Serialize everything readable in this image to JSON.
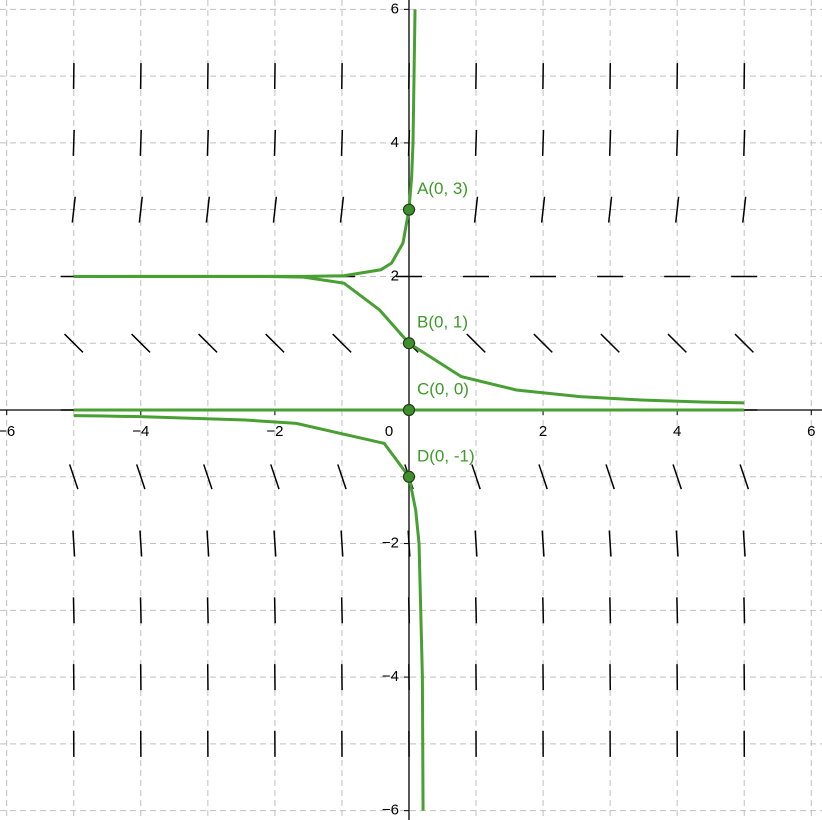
{
  "chart_data": {
    "type": "slope_field",
    "xlim": [
      -6.1,
      6.16
    ],
    "ylim": [
      -6.14,
      6.14
    ],
    "xticks": [
      {
        "value": -6,
        "label": "−6"
      },
      {
        "value": -4,
        "label": "−4"
      },
      {
        "value": -2,
        "label": "−2"
      },
      0,
      2,
      4,
      6
    ],
    "yticks": [
      {
        "value": -6,
        "label": "−6"
      },
      {
        "value": -4,
        "label": "−4"
      },
      {
        "value": -2,
        "label": "−2"
      },
      2,
      4,
      6
    ],
    "xgrid": [
      -6,
      -5,
      -4,
      -3,
      -2,
      -1,
      0,
      1,
      2,
      3,
      4,
      5,
      6
    ],
    "ygrid": [
      -6,
      -5,
      -4,
      -3,
      -2,
      -1,
      0,
      1,
      2,
      3,
      4,
      5,
      6
    ],
    "grid": true,
    "slope_field": {
      "color": "#000000",
      "x": [
        -5,
        -4,
        -3,
        -2,
        -1,
        0,
        1,
        2,
        3,
        4,
        5
      ],
      "y": [
        -5,
        -4,
        -3,
        -2,
        -1,
        0,
        1,
        2,
        3,
        4,
        5
      ],
      "slopes": [
        -175,
        -96,
        -45,
        -16,
        -3,
        0,
        -1,
        0,
        9,
        32,
        75
      ]
    },
    "series": [
      {
        "color": "#48a032",
        "x": [
          -5,
          -1.54,
          -0.97,
          -0.42,
          -0.26,
          -0.09,
          0,
          0.04,
          0.06,
          0.09
        ],
        "values": [
          2,
          2.001,
          2.01,
          2.1,
          2.2,
          2.5,
          3,
          3.5,
          4,
          6
        ]
      },
      {
        "color": "#48a032",
        "x": [
          -5,
          -2.15,
          -1.57,
          -0.97,
          -0.44,
          0,
          0.78,
          1.6,
          2.55,
          3.46,
          4.36,
          5
        ],
        "values": [
          2,
          1.999,
          1.99,
          1.9,
          1.5,
          1,
          0.5,
          0.3,
          0.2,
          0.15,
          0.12,
          0.107
        ]
      },
      {
        "color": "#48a032",
        "x": [
          -5,
          5
        ],
        "values": [
          0,
          0
        ]
      },
      {
        "color": "#48a032",
        "x": [
          -5,
          -4.54,
          -4.01,
          -2.44,
          -1.68,
          -0.37,
          0,
          0.1,
          0.15,
          0.2,
          0.21
        ],
        "values": [
          -0.085,
          -0.09,
          -0.1,
          -0.15,
          -0.2,
          -0.5,
          -1,
          -1.5,
          -2,
          -4,
          -6
        ]
      }
    ],
    "points": [
      {
        "label": "A(0, 3)",
        "x": 0,
        "y": 3
      },
      {
        "label": "B(0, 1)",
        "x": 0,
        "y": 1
      },
      {
        "label": "C(0, 0)",
        "x": 0,
        "y": 0
      },
      {
        "label": "D(0, -1)",
        "x": 0,
        "y": -1
      }
    ],
    "point_color": "#3f8f2f"
  }
}
